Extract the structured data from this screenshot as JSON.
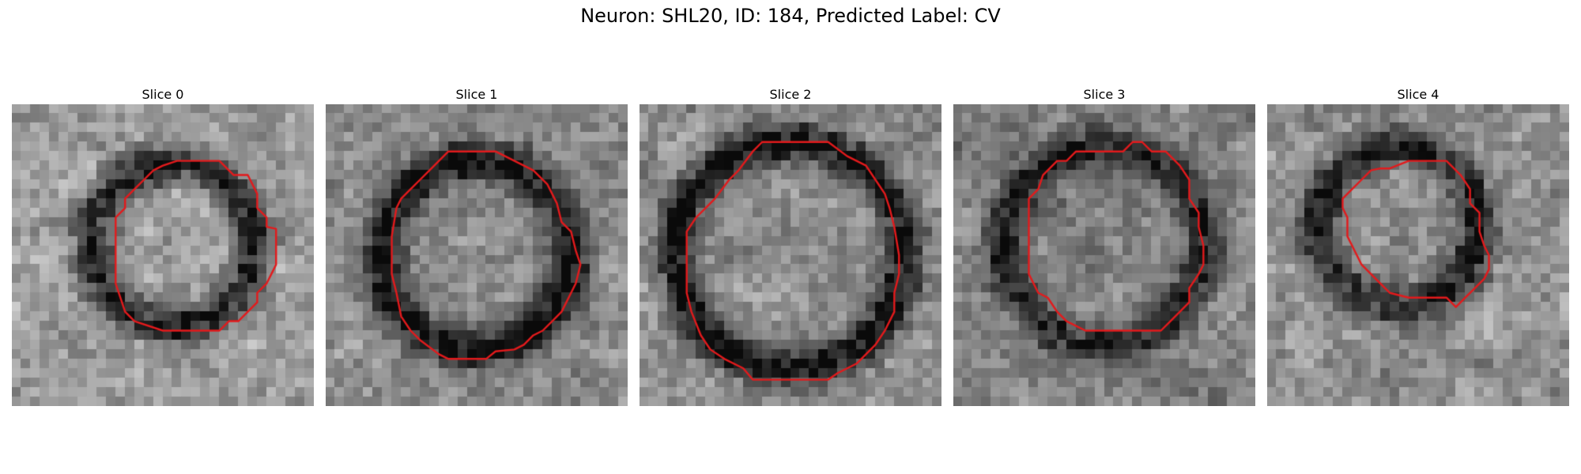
{
  "figure": {
    "title": "Neuron: SHL20, ID: 184, Predicted Label: CV",
    "contour_color": "#e31a1c"
  },
  "slices": [
    {
      "title": "Slice 0",
      "image": "grayscale-em-patch",
      "overlay": "red-contour"
    },
    {
      "title": "Slice 1",
      "image": "grayscale-em-patch",
      "overlay": "red-contour"
    },
    {
      "title": "Slice 2",
      "image": "grayscale-em-patch",
      "overlay": "red-contour"
    },
    {
      "title": "Slice 3",
      "image": "grayscale-em-patch",
      "overlay": "red-contour"
    },
    {
      "title": "Slice 4",
      "image": "grayscale-em-patch",
      "overlay": "red-contour"
    }
  ]
}
